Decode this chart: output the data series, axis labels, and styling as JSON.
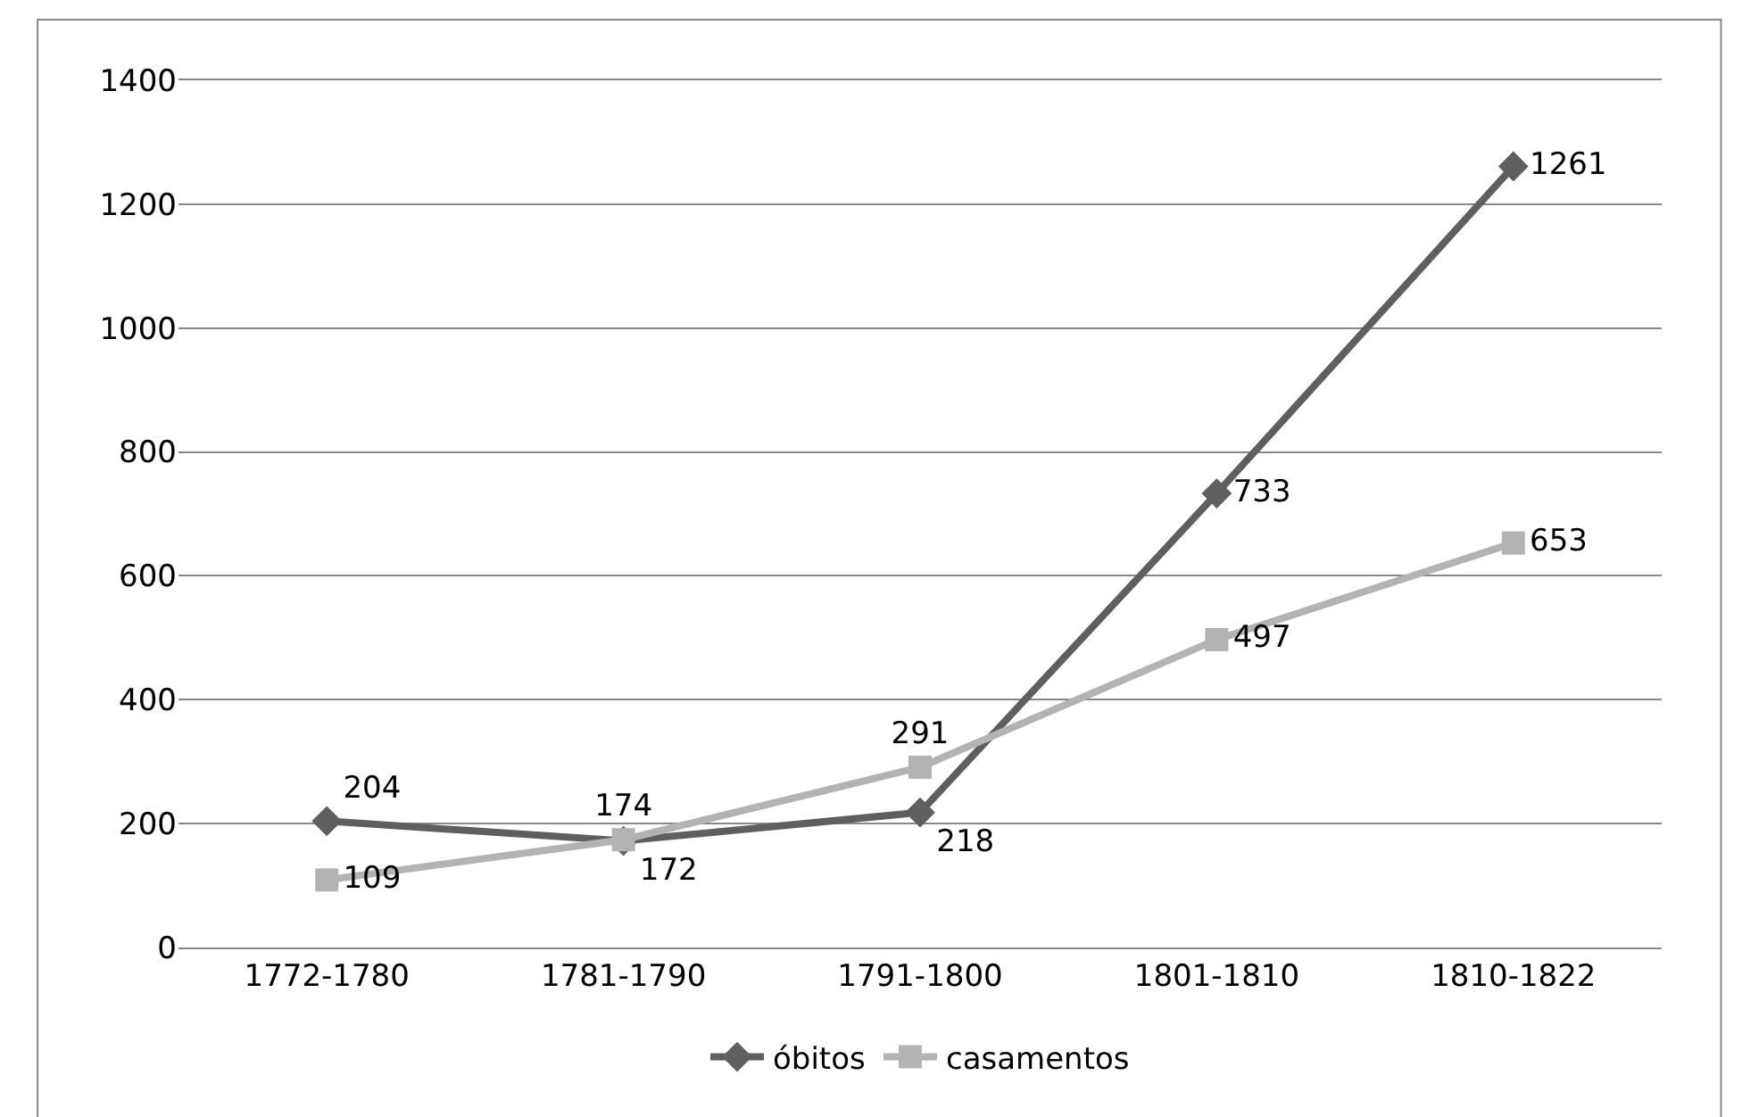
{
  "chart_data": {
    "type": "line",
    "categories": [
      "1772-1780",
      "1781-1790",
      "1791-1800",
      "1801-1810",
      "1810-1822"
    ],
    "series": [
      {
        "name": "óbitos",
        "color": "#5f5f5f",
        "marker": "diamond",
        "values": [
          204,
          172,
          218,
          733,
          1261
        ]
      },
      {
        "name": "casamentos",
        "color": "#b3b3b3",
        "marker": "square",
        "values": [
          109,
          174,
          291,
          497,
          653
        ]
      }
    ],
    "ylim": [
      0,
      1400
    ],
    "yticks": [
      0,
      200,
      400,
      600,
      800,
      1000,
      1200,
      1400
    ],
    "grid": "y",
    "legend": "bottom",
    "data_labels": true,
    "line_style": "solid"
  }
}
